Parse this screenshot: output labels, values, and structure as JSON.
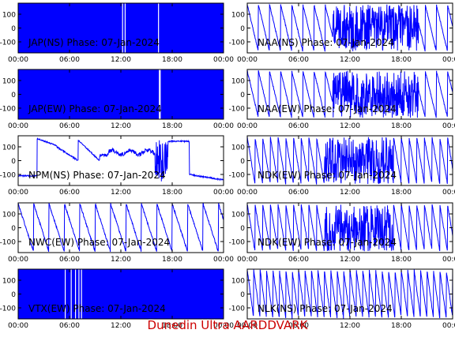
{
  "footer": {
    "caption": "Dunedin Ultra AARDDVARK"
  },
  "colors": {
    "trace": "#0000ff",
    "axes": "#000000",
    "caption": "#cc0000",
    "background": "#ffffff"
  },
  "chart_data": [
    {
      "id": "jap-ns",
      "type": "line",
      "title": "JAP(NS) Phase: 07-Jan-2024",
      "style": "dense",
      "breaks": [
        12.2,
        12.5,
        16.4
      ],
      "x_tick_labels": [
        "00:00",
        "06:00",
        "12:00",
        "18:00",
        "00:00"
      ],
      "y_tick_labels": [
        "100",
        "0",
        "-100"
      ],
      "xlim": [
        0,
        24
      ],
      "ylim": [
        -180,
        180
      ],
      "yticks": [
        100,
        0,
        -100
      ]
    },
    {
      "id": "naa-ns",
      "type": "line",
      "title": "NAA(NS) Phase: 07-Jan-2024",
      "style": "mixed",
      "x_tick_labels": [
        "00:00",
        "06:00",
        "12:00",
        "18:00",
        "00:00"
      ],
      "y_tick_labels": [
        "100",
        "0",
        "-100"
      ],
      "xlim": [
        0,
        24
      ],
      "ylim": [
        -180,
        180
      ],
      "yticks": [
        100,
        0,
        -100
      ]
    },
    {
      "id": "jap-ew",
      "type": "line",
      "title": "JAP(EW) Phase: 07-Jan-2024",
      "style": "dense",
      "breaks": [
        16.5,
        16.6
      ],
      "x_tick_labels": [
        "00:00",
        "06:00",
        "12:00",
        "18:00",
        "00:00"
      ],
      "y_tick_labels": [
        "100",
        "0",
        "-100"
      ],
      "xlim": [
        0,
        24
      ],
      "ylim": [
        -180,
        180
      ],
      "yticks": [
        100,
        0,
        -100
      ]
    },
    {
      "id": "naa-ew",
      "type": "line",
      "title": "NAA(EW) Phase: 07-Jan-2024",
      "style": "mixed",
      "x_tick_labels": [
        "00:00",
        "06:00",
        "12:00",
        "18:00",
        "00:00"
      ],
      "y_tick_labels": [
        "100",
        "0",
        "-100"
      ],
      "xlim": [
        0,
        24
      ],
      "ylim": [
        -180,
        180
      ],
      "yticks": [
        100,
        0,
        -100
      ]
    },
    {
      "id": "npm-ns",
      "type": "line",
      "title": "NPM(NS) Phase: 07-Jan-2024",
      "style": "npm",
      "x_tick_labels": [
        "00:00",
        "06:00",
        "12:00",
        "18:00",
        "00:00"
      ],
      "y_tick_labels": [
        "100",
        "0",
        "-100"
      ],
      "xlim": [
        0,
        24
      ],
      "ylim": [
        -180,
        180
      ],
      "yticks": [
        100,
        0,
        -100
      ]
    },
    {
      "id": "ndk-ew",
      "type": "line",
      "title": "NDK(EW) Phase: 07-Jan-2024",
      "style": "wrapdense",
      "x_tick_labels": [
        "00:00",
        "06:00",
        "12:00",
        "18:00",
        "00:00"
      ],
      "y_tick_labels": [
        "100",
        "0",
        "-100"
      ],
      "xlim": [
        0,
        24
      ],
      "ylim": [
        -180,
        180
      ],
      "yticks": [
        100,
        0,
        -100
      ]
    },
    {
      "id": "nwc-ew",
      "type": "line",
      "title": "NWC(EW) Phase: 07-Jan-2024",
      "style": "sawtooth",
      "period": 1.8,
      "x_tick_labels": [
        "00:00",
        "06:00",
        "12:00",
        "18:00",
        "00:00"
      ],
      "y_tick_labels": [
        "100",
        "0",
        "-100"
      ],
      "xlim": [
        0,
        24
      ],
      "ylim": [
        -180,
        180
      ],
      "yticks": [
        100,
        0,
        -100
      ]
    },
    {
      "id": "ndk-ew-2",
      "type": "line",
      "title": "NDK(EW) Phase: 07-Jan-2024",
      "style": "wrapdense",
      "x_tick_labels": [
        "00:00",
        "06:00",
        "12:00",
        "18:00",
        "00:00"
      ],
      "y_tick_labels": [
        "100",
        "0",
        "-100"
      ],
      "xlim": [
        0,
        24
      ],
      "ylim": [
        -180,
        180
      ],
      "yticks": [
        100,
        0,
        -100
      ]
    },
    {
      "id": "vtx-ew",
      "type": "line",
      "title": "VTX(EW) Phase: 07-Jan-2024",
      "style": "dense",
      "breaks": [
        5.5,
        6.2,
        6.7,
        7.1,
        7.4
      ],
      "x_tick_labels": [
        "00:00",
        "06:00",
        "12:00",
        "18:00",
        "00:00"
      ],
      "y_tick_labels": [
        "100",
        "0",
        "-100"
      ],
      "xlim": [
        0,
        24
      ],
      "ylim": [
        -180,
        180
      ],
      "yticks": [
        100,
        0,
        -100
      ]
    },
    {
      "id": "nlk-ns",
      "type": "line",
      "title": "NLK(NS) Phase: 07-Jan-2024",
      "style": "sawtooth",
      "period": 0.75,
      "x_tick_labels": [
        "00:00",
        "06:00",
        "12:00",
        "18:00",
        "00:00"
      ],
      "y_tick_labels": [
        "100",
        "0",
        "-100"
      ],
      "xlim": [
        0,
        24
      ],
      "ylim": [
        -180,
        180
      ],
      "yticks": [
        100,
        0,
        -100
      ]
    }
  ]
}
